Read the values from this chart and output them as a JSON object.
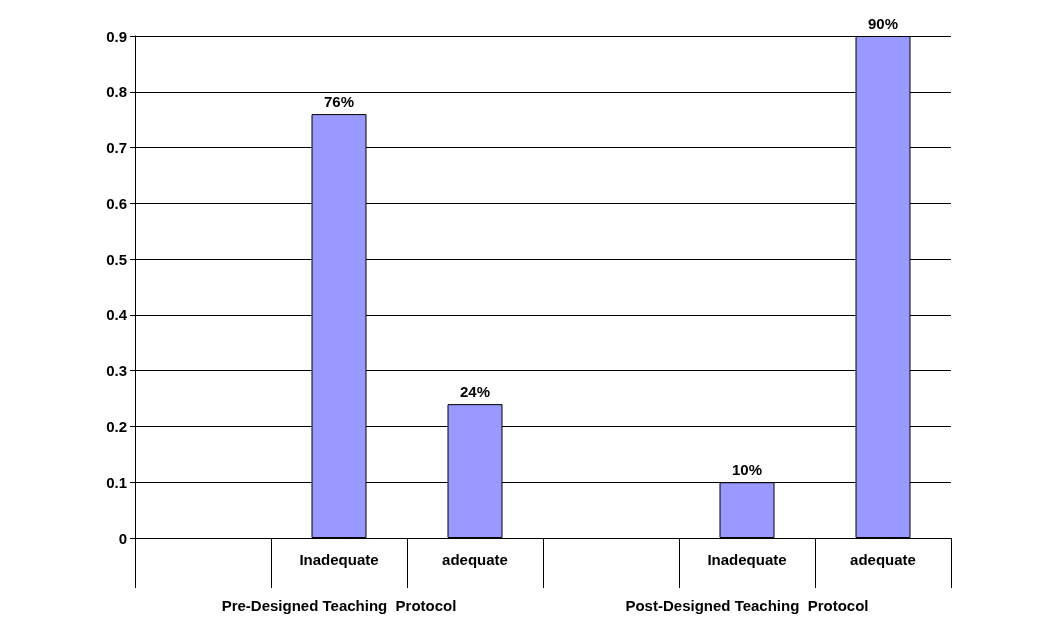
{
  "chart_data": {
    "type": "bar",
    "categories": [
      null,
      "Inadequate",
      "adequate",
      null,
      "Inadequate",
      "adequate"
    ],
    "values": [
      null,
      0.76,
      0.24,
      null,
      0.1,
      0.9
    ],
    "value_labels": [
      null,
      "76%",
      "24%",
      null,
      "10%",
      "90%"
    ],
    "color": "#9999ff",
    "ylim": [
      0,
      0.9
    ],
    "yticks": [
      0,
      0.1,
      0.2,
      0.3,
      0.4,
      0.5,
      0.6,
      0.7,
      0.8,
      0.9
    ],
    "grid": "y",
    "annotations": [
      "Pre-Designed Teaching  Protocol",
      "Post-Designed Teaching  Protocol"
    ]
  }
}
